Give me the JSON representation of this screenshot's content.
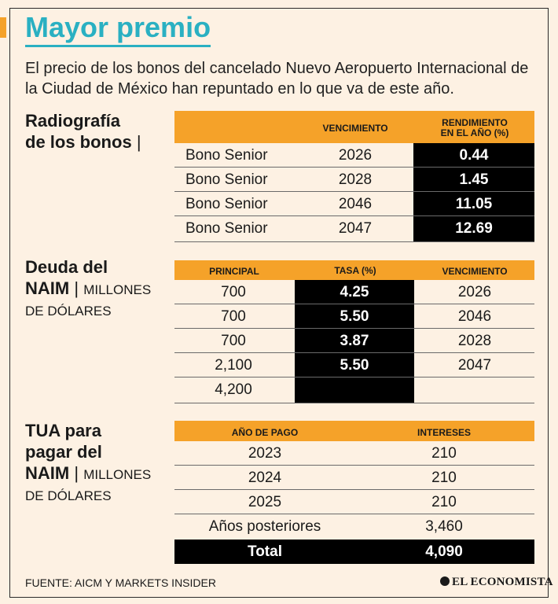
{
  "title": "Mayor premio",
  "intro": "El precio de los bonos del cancelado Nuevo Aeropuerto Internacional de la Ciudad de México han repuntado en lo que va de este año.",
  "bonds": {
    "label_line1": "Radiografía",
    "label_line2": "de los bonos",
    "label_pipe": "|",
    "col_vencimiento": "VENCIMIENTO",
    "col_rendimiento_line1": "RENDIMIENTO",
    "col_rendimiento_line2": "EN EL AÑO (%)",
    "rows": [
      {
        "name": "Bono Senior",
        "year": "2026",
        "yield": "0.44"
      },
      {
        "name": "Bono Senior",
        "year": "2028",
        "yield": "1.45"
      },
      {
        "name": "Bono Senior",
        "year": "2046",
        "yield": "11.05"
      },
      {
        "name": "Bono Senior",
        "year": "2047",
        "yield": "12.69"
      }
    ]
  },
  "debt": {
    "label_line1": "Deuda del",
    "label_line2_bold": "NAIM",
    "label_pipe": "|",
    "label_line2_unit": "MILLONES",
    "label_line3_unit": "DE DÓLARES",
    "col_principal": "PRINCIPAL",
    "col_tasa": "TASA (%)",
    "col_vencimiento": "VENCIMIENTO",
    "rows": [
      {
        "principal": "700",
        "tasa": "4.25",
        "venc": "2026"
      },
      {
        "principal": "700",
        "tasa": "5.50",
        "venc": "2046"
      },
      {
        "principal": "700",
        "tasa": "3.87",
        "venc": "2028"
      },
      {
        "principal": "2,100",
        "tasa": "5.50",
        "venc": "2047"
      },
      {
        "principal": "4,200",
        "tasa": "",
        "venc": ""
      }
    ]
  },
  "tua": {
    "label_line1": "TUA para",
    "label_line2": "pagar del",
    "label_line3_bold": "NAIM",
    "label_pipe": "|",
    "label_line3_unit": "MILLONES",
    "label_line4_unit": "DE DÓLARES",
    "col_year": "AÑO DE PAGO",
    "col_interest": "INTERESES",
    "rows": [
      {
        "year": "2023",
        "interest": "210"
      },
      {
        "year": "2024",
        "interest": "210"
      },
      {
        "year": "2025",
        "interest": "210"
      },
      {
        "year": "Años posteriores",
        "interest": "3,460"
      }
    ],
    "total_label": "Total",
    "total_value": "4,090"
  },
  "source": "FUENTE: AICM Y MARKETS INSIDER",
  "brand": "EL ECONOMISTA",
  "colors": {
    "accent": "#f5a229",
    "title": "#2ab0c2",
    "background": "#fdf1e3"
  }
}
